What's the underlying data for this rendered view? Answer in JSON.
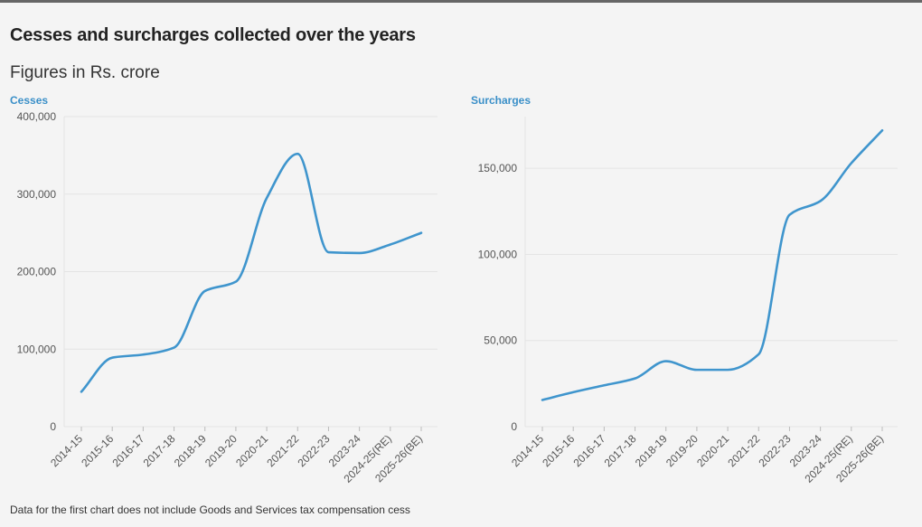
{
  "title": "Cesses and surcharges collected over the years",
  "subtitle": "Figures in Rs. crore",
  "footnote": "Data for the first chart does not include Goods and Services tax compensation cess",
  "colors": {
    "line": "#3f95cd",
    "grid": "#e4e4e4",
    "axis": "#bbbbbb",
    "accent": "#3a8fc8"
  },
  "chart_data": [
    {
      "type": "line",
      "title": "Cesses",
      "categories": [
        "2014-15",
        "2015-16",
        "2016-17",
        "2017-18",
        "2018-19",
        "2019-20",
        "2020-21",
        "2021-22",
        "2022-23",
        "2023-24",
        "2024-25(RE)",
        "2025-26(BE)"
      ],
      "values": [
        45000,
        89000,
        93000,
        102000,
        175000,
        187000,
        295000,
        352000,
        225000,
        224000,
        235000,
        250000
      ],
      "ylim": [
        0,
        400000
      ],
      "yticks": [
        0,
        100000,
        200000,
        300000,
        400000
      ],
      "ytick_labels": [
        "0",
        "100,000",
        "200,000",
        "300,000",
        "400,000"
      ],
      "xlabel": "",
      "ylabel": "",
      "grid": true
    },
    {
      "type": "line",
      "title": "Surcharges",
      "categories": [
        "2014-15",
        "2015-16",
        "2016-17",
        "2017-18",
        "2018-19",
        "2019-20",
        "2020-21",
        "2021-22",
        "2022-23",
        "2023-24",
        "2024-25(RE)",
        "2025-26(BE)"
      ],
      "values": [
        15500,
        20000,
        24000,
        28000,
        38000,
        33000,
        33000,
        42000,
        123000,
        131000,
        153000,
        172000
      ],
      "ylim": [
        0,
        180000
      ],
      "yticks": [
        0,
        50000,
        100000,
        150000
      ],
      "ytick_labels": [
        "0",
        "50,000",
        "100,000",
        "150,000"
      ],
      "xlabel": "",
      "ylabel": "",
      "grid": true
    }
  ]
}
